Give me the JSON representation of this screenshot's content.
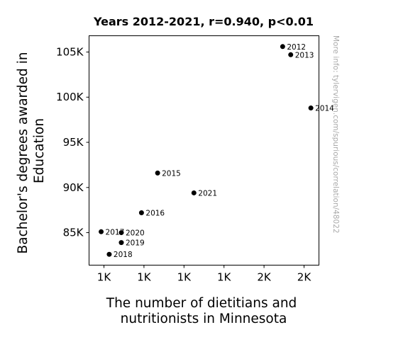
{
  "chart_data": {
    "type": "scatter",
    "title": "Years 2012-2021, r=0.940, p<0.01",
    "xlabel": [
      "The number of dietitians and",
      "nutritionists in Minnesota"
    ],
    "ylabel": [
      "Bachelor's degrees awarded in",
      "Education"
    ],
    "x_tick_labels": [
      "1K",
      "1K",
      "1K",
      "1K",
      "2K",
      "2K"
    ],
    "y_tick_labels": [
      "85K",
      "90K",
      "95K",
      "100K",
      "105K"
    ],
    "y_ticks": [
      85000,
      90000,
      95000,
      100000,
      105000
    ],
    "xlim": [
      1200,
      1770
    ],
    "ylim": [
      81400,
      106800
    ],
    "grid": false,
    "marker_color": "#000000",
    "points": [
      {
        "year": "2012",
        "x": 1680,
        "y": 105600
      },
      {
        "year": "2013",
        "x": 1700,
        "y": 104700
      },
      {
        "year": "2014",
        "x": 1750,
        "y": 98800
      },
      {
        "year": "2015",
        "x": 1370,
        "y": 91600
      },
      {
        "year": "2016",
        "x": 1330,
        "y": 87200
      },
      {
        "year": "2017",
        "x": 1230,
        "y": 85100
      },
      {
        "year": "2018",
        "x": 1250,
        "y": 82600
      },
      {
        "year": "2019",
        "x": 1280,
        "y": 83900
      },
      {
        "year": "2020",
        "x": 1280,
        "y": 85000
      },
      {
        "year": "2021",
        "x": 1460,
        "y": 89400
      }
    ]
  },
  "watermark": "More info: tylervigen.com/spurious/correlation/48022"
}
